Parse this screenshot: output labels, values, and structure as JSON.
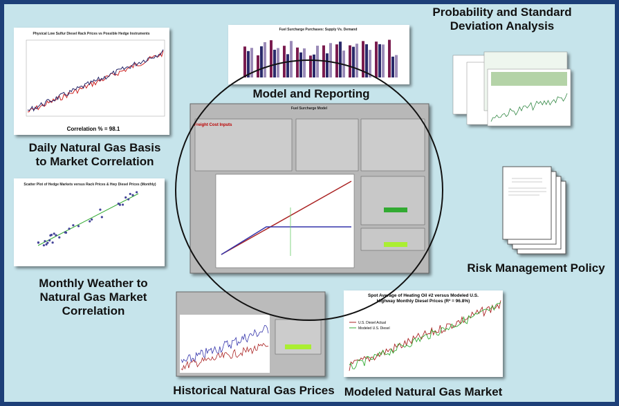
{
  "captions": {
    "daily_basis": [
      "Daily Natural Gas Basis",
      "to Market Correlation"
    ],
    "monthly_weather": [
      "Monthly Weather to",
      "Natural Gas Market",
      "Correlation"
    ],
    "model": "Model and Reporting",
    "probability": [
      "Probability and Standard",
      "Deviation Analysis"
    ],
    "risk": "Risk Management Policy",
    "historical": "Historical Natural Gas Prices",
    "modeled": "Modeled Natural Gas Market"
  },
  "thumbnails": {
    "rack_title": "Physical Low Sulfur Diesel Rack Prices vs Possible Hedge Instruments",
    "correlation": "Correlation % = 98.1",
    "supply_title": "Fuel Surcharge Purchases: Supply Vs. Demand",
    "model_title": "Fuel Surcharge Model",
    "freight": "Freight Cost Inputs",
    "scatter_title": "Scatter Plot of Hedge Markets versus Rack Prices & Hwy Diesel Prices (Monthly)",
    "modeled_title": [
      "Spot Average of Heating Oil #2 versus Modeled U.S.",
      "Highway Monthly Diesel Prices (R² = 96.8%)"
    ],
    "legend_actual": "U.S. Diesel Actual",
    "legend_modeled": "Modeled U.S. Diesel"
  }
}
